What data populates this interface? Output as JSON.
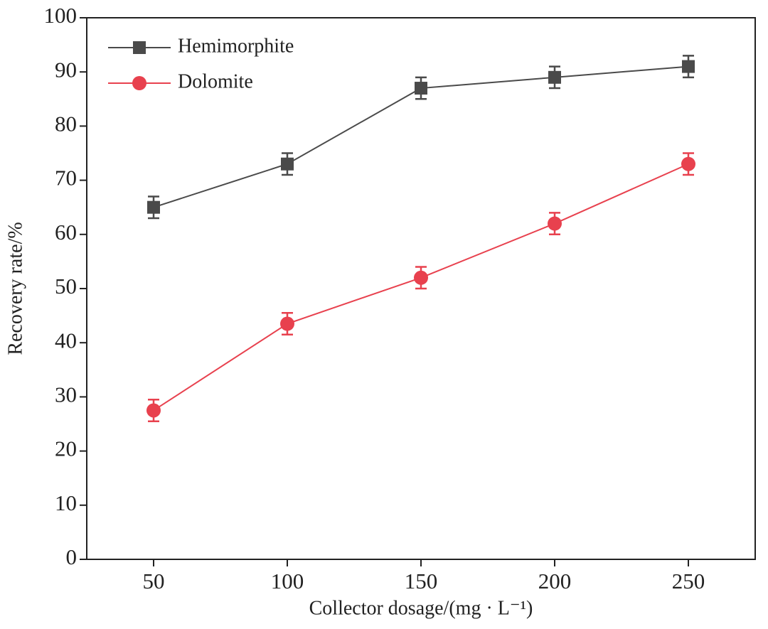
{
  "chart_data": {
    "type": "line",
    "x_label": "Collector dosage/(mg · L⁻¹)",
    "y_label": "Recovery rate/%",
    "x": [
      50,
      100,
      150,
      200,
      250
    ],
    "xlim": [
      25,
      275
    ],
    "xticks": [
      50,
      100,
      150,
      200,
      250
    ],
    "ylim": [
      0,
      100
    ],
    "yticks": [
      0,
      10,
      20,
      30,
      40,
      50,
      60,
      70,
      80,
      90,
      100
    ],
    "legend": "upper left",
    "series": [
      {
        "name": "Hemimorphite",
        "color": "#4a4a4a",
        "marker": "square",
        "values": [
          65,
          73,
          87,
          89,
          91
        ],
        "errors": [
          2,
          2,
          2,
          2,
          2
        ]
      },
      {
        "name": "Dolomite",
        "color": "#e8414e",
        "marker": "circle",
        "values": [
          27.5,
          43.5,
          52,
          62,
          73
        ],
        "errors": [
          2,
          2,
          2,
          2,
          2
        ]
      }
    ]
  }
}
